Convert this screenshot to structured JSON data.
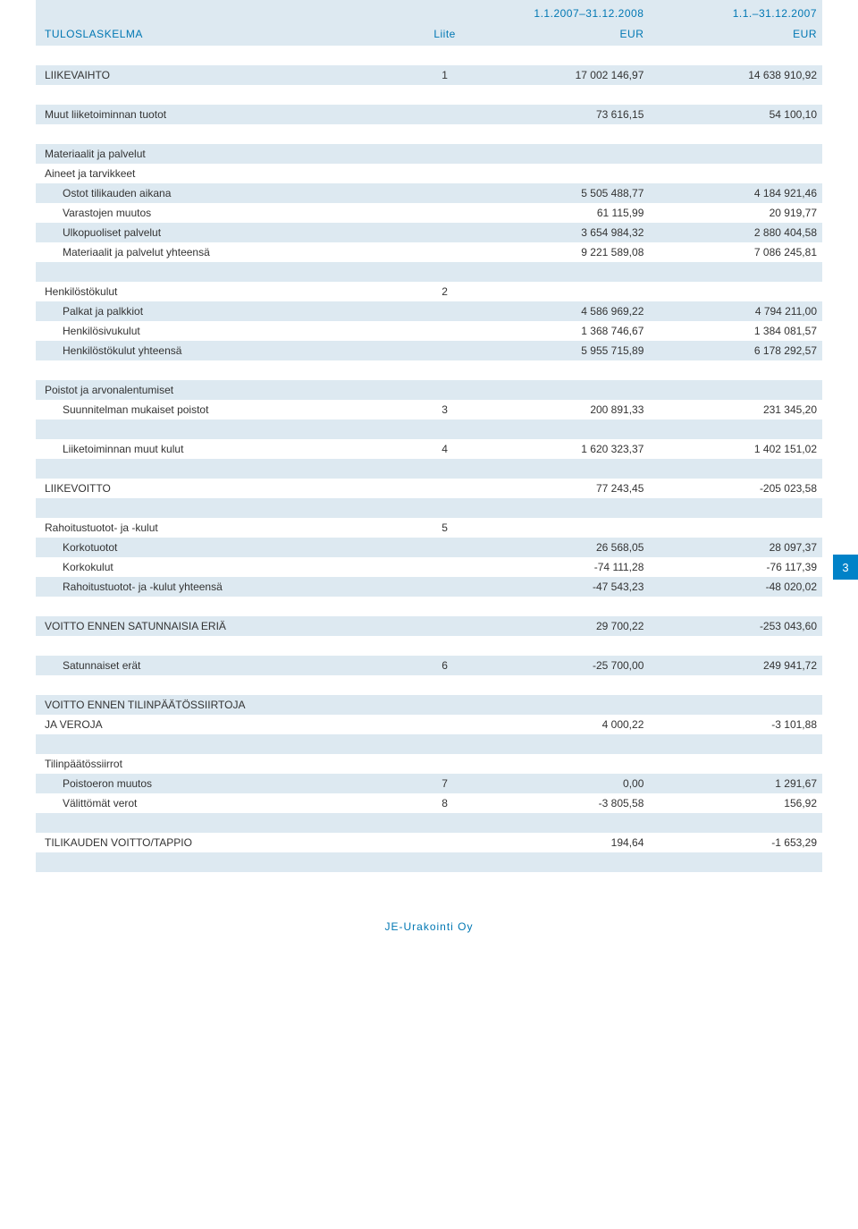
{
  "colors": {
    "row_blue": "#dde9f1",
    "row_white": "#ffffff",
    "accent_text": "#0077b3",
    "tab_bg": "#0082c8",
    "body_text": "#333333"
  },
  "header": {
    "title_label": "TULOSLASKELMA",
    "liite_label": "Liite",
    "period1": "1.1.2007–31.12.2008",
    "period2": "1.1.–31.12.2007",
    "cur1": "EUR",
    "cur2": "EUR"
  },
  "page_number": "3",
  "footer": "JE-Urakointi Oy",
  "rows": [
    {
      "t": "LIIKEVAIHTO",
      "l": "1",
      "v1": "17 002 146,97",
      "v2": "14 638 910,92",
      "cls": "row-blue",
      "uc": true
    },
    {
      "t": "",
      "l": "",
      "v1": "",
      "v2": "",
      "cls": "row-white"
    },
    {
      "t": "Muut liiketoiminnan tuotot",
      "l": "",
      "v1": "73 616,15",
      "v2": "54 100,10",
      "cls": "row-blue"
    },
    {
      "t": "",
      "l": "",
      "v1": "",
      "v2": "",
      "cls": "row-white"
    },
    {
      "t": "Materiaalit ja palvelut",
      "l": "",
      "v1": "",
      "v2": "",
      "cls": "row-blue"
    },
    {
      "t": "Aineet ja tarvikkeet",
      "l": "",
      "v1": "",
      "v2": "",
      "cls": "row-white"
    },
    {
      "t": "Ostot tilikauden aikana",
      "l": "",
      "v1": "5 505 488,77",
      "v2": "4 184 921,46",
      "cls": "row-blue",
      "ind": true
    },
    {
      "t": "Varastojen muutos",
      "l": "",
      "v1": "61 115,99",
      "v2": "20 919,77",
      "cls": "row-white",
      "ind": true
    },
    {
      "t": "Ulkopuoliset palvelut",
      "l": "",
      "v1": "3 654 984,32",
      "v2": "2 880 404,58",
      "cls": "row-blue",
      "ind": true
    },
    {
      "t": "Materiaalit ja palvelut yhteensä",
      "l": "",
      "v1": "9 221 589,08",
      "v2": "7 086 245,81",
      "cls": "row-white",
      "ind": true
    },
    {
      "t": "",
      "l": "",
      "v1": "",
      "v2": "",
      "cls": "row-blue"
    },
    {
      "t": "Henkilöstökulut",
      "l": "2",
      "v1": "",
      "v2": "",
      "cls": "row-white"
    },
    {
      "t": "Palkat ja palkkiot",
      "l": "",
      "v1": "4 586 969,22",
      "v2": "4 794 211,00",
      "cls": "row-blue",
      "ind": true
    },
    {
      "t": "Henkilösivukulut",
      "l": "",
      "v1": "1 368 746,67",
      "v2": "1 384 081,57",
      "cls": "row-white",
      "ind": true
    },
    {
      "t": "Henkilöstökulut yhteensä",
      "l": "",
      "v1": "5 955 715,89",
      "v2": "6 178 292,57",
      "cls": "row-blue",
      "ind": true
    },
    {
      "t": "",
      "l": "",
      "v1": "",
      "v2": "",
      "cls": "row-white"
    },
    {
      "t": "Poistot ja arvonalentumiset",
      "l": "",
      "v1": "",
      "v2": "",
      "cls": "row-blue"
    },
    {
      "t": "Suunnitelman mukaiset poistot",
      "l": "3",
      "v1": "200 891,33",
      "v2": "231 345,20",
      "cls": "row-white",
      "ind": true
    },
    {
      "t": "",
      "l": "",
      "v1": "",
      "v2": "",
      "cls": "row-blue"
    },
    {
      "t": "Liiketoiminnan muut kulut",
      "l": "4",
      "v1": "1 620 323,37",
      "v2": "1 402 151,02",
      "cls": "row-white",
      "ind": true
    },
    {
      "t": "",
      "l": "",
      "v1": "",
      "v2": "",
      "cls": "row-blue"
    },
    {
      "t": "LIIKEVOITTO",
      "l": "",
      "v1": "77 243,45",
      "v2": "-205 023,58",
      "cls": "row-white",
      "uc": true
    },
    {
      "t": "",
      "l": "",
      "v1": "",
      "v2": "",
      "cls": "row-blue"
    },
    {
      "t": "Rahoitustuotot- ja -kulut",
      "l": "5",
      "v1": "",
      "v2": "",
      "cls": "row-white"
    },
    {
      "t": "Korkotuotot",
      "l": "",
      "v1": "26 568,05",
      "v2": "28 097,37",
      "cls": "row-blue",
      "ind": true
    },
    {
      "t": "Korkokulut",
      "l": "",
      "v1": "-74 111,28",
      "v2": "-76 117,39",
      "cls": "row-white",
      "ind": true
    },
    {
      "t": "Rahoitustuotot- ja -kulut yhteensä",
      "l": "",
      "v1": "-47 543,23",
      "v2": "-48 020,02",
      "cls": "row-blue",
      "ind": true
    },
    {
      "t": "",
      "l": "",
      "v1": "",
      "v2": "",
      "cls": "row-white"
    },
    {
      "t": "VOITTO ENNEN SATUNNAISIA ERIÄ",
      "l": "",
      "v1": "29 700,22",
      "v2": "-253 043,60",
      "cls": "row-blue",
      "uc": true
    },
    {
      "t": "",
      "l": "",
      "v1": "",
      "v2": "",
      "cls": "row-white"
    },
    {
      "t": "Satunnaiset erät",
      "l": "6",
      "v1": "-25 700,00",
      "v2": "249 941,72",
      "cls": "row-blue",
      "ind": true
    },
    {
      "t": "",
      "l": "",
      "v1": "",
      "v2": "",
      "cls": "row-white"
    },
    {
      "t": "VOITTO ENNEN TILINPÄÄTÖSSIIRTOJA",
      "l": "",
      "v1": "",
      "v2": "",
      "cls": "row-blue",
      "uc": true
    },
    {
      "t": "JA VEROJA",
      "l": "",
      "v1": "4 000,22",
      "v2": "-3 101,88",
      "cls": "row-white",
      "uc": true
    },
    {
      "t": "",
      "l": "",
      "v1": "",
      "v2": "",
      "cls": "row-blue"
    },
    {
      "t": "Tilinpäätössiirrot",
      "l": "",
      "v1": "",
      "v2": "",
      "cls": "row-white"
    },
    {
      "t": "Poistoeron muutos",
      "l": "7",
      "v1": "0,00",
      "v2": "1 291,67",
      "cls": "row-blue",
      "ind": true
    },
    {
      "t": "Välittömät verot",
      "l": "8",
      "v1": "-3 805,58",
      "v2": "156,92",
      "cls": "row-white",
      "ind": true
    },
    {
      "t": "",
      "l": "",
      "v1": "",
      "v2": "",
      "cls": "row-blue"
    },
    {
      "t": "TILIKAUDEN VOITTO/TAPPIO",
      "l": "",
      "v1": "194,64",
      "v2": "-1 653,29",
      "cls": "row-white",
      "uc": true
    },
    {
      "t": "",
      "l": "",
      "v1": "",
      "v2": "",
      "cls": "row-blue"
    },
    {
      "t": "",
      "l": "",
      "v1": "",
      "v2": "",
      "cls": "row-white"
    }
  ]
}
